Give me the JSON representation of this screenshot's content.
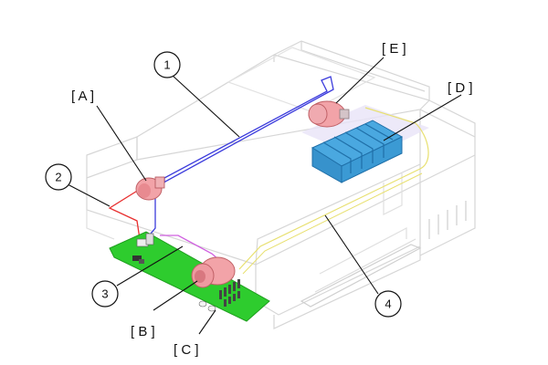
{
  "callouts": {
    "n1": "1",
    "n2": "2",
    "n3": "3",
    "n4": "4",
    "A": "[ A ]",
    "B": "[ B ]",
    "C": "[ C ]",
    "D": "[ D ]",
    "E": "[ E ]"
  },
  "colors": {
    "printer_outline": "#d8d8d8",
    "motor": "#f2a3a8",
    "board": "#28c828",
    "wire_blue": "#3b3bdc",
    "wire_red": "#e83030",
    "wire_magenta": "#d060e0",
    "wire_yellow": "#e8e070",
    "cartridge": "#4aa8e0"
  }
}
